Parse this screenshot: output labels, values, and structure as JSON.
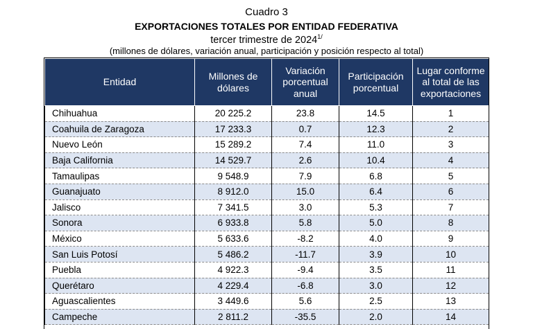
{
  "header": {
    "cuadro": "Cuadro 3",
    "title": "EXPORTACIONES TOTALES POR ENTIDAD FEDERATIVA",
    "period": "tercer trimestre de 2024",
    "period_note": "1/",
    "units": "(millones de dólares, variación anual, participación y posición respecto al total)"
  },
  "table": {
    "columns": [
      "Entidad",
      "Millones de dólares",
      "Variación porcentual anual",
      "Participación porcentual",
      "Lugar conforme al total de las exportaciones"
    ],
    "rows": [
      [
        "Chihuahua",
        "20 225.2",
        "23.8",
        "14.5",
        "1"
      ],
      [
        "Coahuila de Zaragoza",
        "17 233.3",
        "0.7",
        "12.3",
        "2"
      ],
      [
        "Nuevo León",
        "15 289.2",
        "7.4",
        "11.0",
        "3"
      ],
      [
        "Baja California",
        "14 529.7",
        "2.6",
        "10.4",
        "4"
      ],
      [
        "Tamaulipas",
        "9 548.9",
        "7.9",
        "6.8",
        "5"
      ],
      [
        "Guanajuato",
        "8 912.0",
        "15.0",
        "6.4",
        "6"
      ],
      [
        "Jalisco",
        "7 341.5",
        "3.0",
        "5.3",
        "7"
      ],
      [
        "Sonora",
        "6 933.8",
        "5.8",
        "5.0",
        "8"
      ],
      [
        "México",
        "5 633.6",
        "-8.2",
        "4.0",
        "9"
      ],
      [
        "San Luis Potosí",
        "5 486.2",
        "-11.7",
        "3.9",
        "10"
      ],
      [
        "Puebla",
        "4 922.3",
        "-9.4",
        "3.5",
        "11"
      ],
      [
        "Querétaro",
        "4 229.4",
        "-6.8",
        "3.0",
        "12"
      ],
      [
        "Aguascalientes",
        "3 449.6",
        "5.6",
        "2.5",
        "13"
      ],
      [
        "Campeche",
        "2 811.2",
        "-35.5",
        "2.0",
        "14"
      ]
    ]
  },
  "colors": {
    "header_bg": "#1f3864",
    "stripe": "#dde5f2"
  }
}
